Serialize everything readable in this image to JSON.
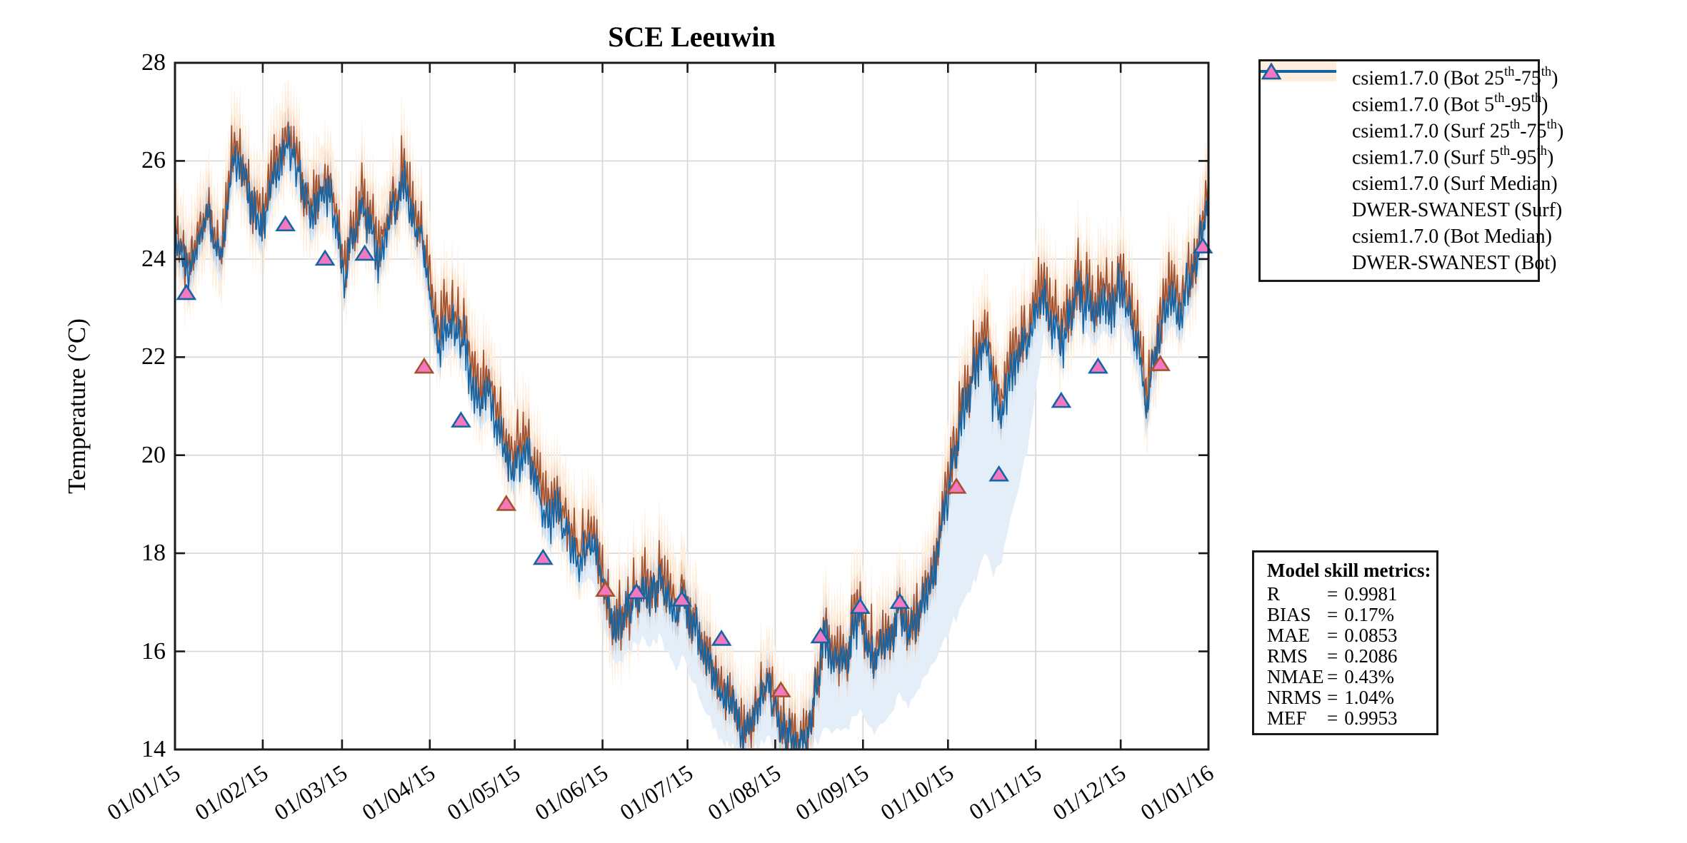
{
  "chart_data": {
    "type": "line",
    "title": "SCE Leeuwin",
    "xlabel": "",
    "ylabel": "Temperature (°C)",
    "ylim": [
      14,
      28
    ],
    "y_ticks": [
      14,
      16,
      18,
      20,
      22,
      24,
      26,
      28
    ],
    "x_tick_labels": [
      "01/01/15",
      "01/02/15",
      "01/03/15",
      "01/04/15",
      "01/05/15",
      "01/06/15",
      "01/07/15",
      "01/08/15",
      "01/09/15",
      "01/10/15",
      "01/11/15",
      "01/12/15",
      "01/01/16"
    ],
    "x_tick_days": [
      0,
      31,
      59,
      90,
      120,
      151,
      181,
      212,
      243,
      273,
      304,
      334,
      365
    ],
    "total_days": 365,
    "grid": true,
    "legend_position": "outside-right",
    "series_control_points": {
      "days": [
        0,
        3,
        5,
        8,
        11,
        13,
        16,
        19,
        21,
        24,
        27,
        30,
        33,
        36,
        39,
        42,
        45,
        48,
        51,
        54,
        57,
        60,
        63,
        66,
        69,
        72,
        75,
        78,
        81,
        84,
        87,
        90,
        93,
        96,
        99,
        102,
        105,
        108,
        111,
        114,
        117,
        120,
        123,
        126,
        129,
        132,
        135,
        138,
        141,
        144,
        147,
        150,
        153,
        156,
        159,
        162,
        165,
        168,
        171,
        174,
        177,
        180,
        183,
        186,
        189,
        192,
        195,
        198,
        201,
        204,
        207,
        210,
        212,
        215,
        218,
        221,
        224,
        227,
        229,
        232,
        235,
        238,
        241,
        244,
        247,
        250,
        253,
        256,
        259,
        262,
        265,
        268,
        271,
        274,
        277,
        280,
        283,
        286,
        289,
        292,
        295,
        298,
        301,
        304,
        307,
        310,
        313,
        316,
        319,
        322,
        325,
        328,
        331,
        334,
        337,
        340,
        343,
        346,
        349,
        352,
        355,
        358,
        361,
        363,
        365
      ],
      "bot_median": [
        24.6,
        24.0,
        23.4,
        24.4,
        25.1,
        24.5,
        24.0,
        25.2,
        26.2,
        25.6,
        25.0,
        24.6,
        25.2,
        25.8,
        26.3,
        26.0,
        25.4,
        24.8,
        25.2,
        25.5,
        24.6,
        23.7,
        24.5,
        25.3,
        24.6,
        24.0,
        24.6,
        25.2,
        25.5,
        25.0,
        24.3,
        23.2,
        22.2,
        22.5,
        22.7,
        22.1,
        21.5,
        21.0,
        21.2,
        20.7,
        20.2,
        19.8,
        20.1,
        19.8,
        19.2,
        18.5,
        18.8,
        18.4,
        18.0,
        17.8,
        18.2,
        17.7,
        17.0,
        16.4,
        16.7,
        17.0,
        17.3,
        17.1,
        17.4,
        17.1,
        16.8,
        17.1,
        16.7,
        16.2,
        15.7,
        15.4,
        15.0,
        14.7,
        14.35,
        14.6,
        15.0,
        15.2,
        14.9,
        14.4,
        14.15,
        14.1,
        14.35,
        15.5,
        16.3,
        15.9,
        15.6,
        16.1,
        16.8,
        16.3,
        15.7,
        16.0,
        16.4,
        16.8,
        16.4,
        16.7,
        17.1,
        17.6,
        18.5,
        19.6,
        20.4,
        21.0,
        21.9,
        22.5,
        21.3,
        20.9,
        21.5,
        21.9,
        22.3,
        22.9,
        23.3,
        22.7,
        22.4,
        22.9,
        23.3,
        23.0,
        22.8,
        23.2,
        23.0,
        23.2,
        22.8,
        22.2,
        21.0,
        22.0,
        22.8,
        23.3,
        23.0,
        23.5,
        24.0,
        24.6,
        25.0
      ],
      "surf_median": [
        24.75,
        24.15,
        23.55,
        24.55,
        25.25,
        24.65,
        24.15,
        25.35,
        26.35,
        25.75,
        25.15,
        24.75,
        25.35,
        25.95,
        26.45,
        26.15,
        25.55,
        24.95,
        25.35,
        25.65,
        24.75,
        23.9,
        24.7,
        25.5,
        24.8,
        24.2,
        24.8,
        25.4,
        25.7,
        25.2,
        24.5,
        23.5,
        22.5,
        22.8,
        23.0,
        22.4,
        21.8,
        21.3,
        21.5,
        21.0,
        20.5,
        20.1,
        20.4,
        20.1,
        19.5,
        18.8,
        19.1,
        18.7,
        18.3,
        18.1,
        18.5,
        17.8,
        17.1,
        16.5,
        16.8,
        17.1,
        17.4,
        17.2,
        17.5,
        17.2,
        16.9,
        17.2,
        16.8,
        16.3,
        15.8,
        15.5,
        15.1,
        14.8,
        14.45,
        14.7,
        15.1,
        15.3,
        15.0,
        14.5,
        14.25,
        14.2,
        14.45,
        15.6,
        16.4,
        16.0,
        15.7,
        16.2,
        16.95,
        16.45,
        15.85,
        16.15,
        16.55,
        16.95,
        16.55,
        16.85,
        17.25,
        17.75,
        18.75,
        19.85,
        20.65,
        21.25,
        22.15,
        22.75,
        21.55,
        21.15,
        21.75,
        22.15,
        22.55,
        23.15,
        23.55,
        22.95,
        22.65,
        23.15,
        23.55,
        23.25,
        23.05,
        23.45,
        23.25,
        23.45,
        23.05,
        22.45,
        21.25,
        22.25,
        23.05,
        23.55,
        23.25,
        23.75,
        24.25,
        24.85,
        25.25
      ],
      "bot_p5": [
        24.1,
        23.5,
        22.9,
        23.9,
        24.6,
        24.0,
        23.5,
        24.7,
        25.7,
        25.1,
        24.5,
        24.1,
        24.7,
        25.3,
        25.8,
        25.5,
        24.9,
        24.3,
        24.7,
        25.0,
        24.1,
        23.2,
        24.0,
        24.8,
        24.1,
        23.5,
        24.1,
        24.7,
        25.0,
        24.5,
        23.8,
        22.7,
        21.7,
        22.0,
        22.2,
        21.6,
        21.0,
        20.5,
        20.7,
        20.2,
        19.7,
        19.3,
        19.6,
        19.3,
        18.7,
        18.0,
        18.3,
        17.9,
        17.5,
        17.3,
        17.5,
        16.9,
        16.2,
        15.7,
        15.9,
        16.1,
        16.3,
        16.1,
        16.3,
        16.0,
        15.7,
        15.9,
        15.4,
        15.0,
        14.6,
        14.3,
        14.1,
        14.0,
        14.0,
        14.0,
        14.1,
        14.2,
        14.0,
        14.0,
        14.0,
        14.0,
        14.0,
        14.2,
        14.4,
        14.4,
        14.3,
        14.5,
        14.8,
        14.6,
        14.3,
        14.5,
        14.8,
        15.1,
        14.9,
        15.2,
        15.5,
        15.8,
        16.1,
        16.5,
        16.8,
        17.1,
        17.5,
        18.1,
        17.6,
        17.9,
        18.6,
        19.3,
        20.1,
        21.3,
        22.5,
        22.1,
        21.8,
        22.3,
        22.7,
        22.4,
        22.2,
        22.6,
        22.4,
        22.6,
        22.2,
        21.6,
        20.4,
        21.4,
        22.2,
        22.7,
        22.4,
        22.9,
        23.4,
        24.0,
        24.4
      ]
    },
    "band_offsets": {
      "bot_25_75": 0.28,
      "bot_p95_above": 0.55,
      "surf_25_75": 0.33,
      "surf_5_95": 0.9
    },
    "noise_amplitude_profile": {
      "days": [
        0,
        30,
        60,
        90,
        120,
        150,
        170,
        200,
        230,
        260,
        285,
        300,
        330,
        365
      ],
      "amp": [
        0.5,
        0.55,
        0.55,
        0.6,
        0.6,
        0.55,
        0.6,
        0.5,
        0.6,
        0.55,
        0.65,
        0.6,
        0.6,
        0.55
      ]
    },
    "observations": {
      "surf": [
        {
          "day": 88,
          "t": 21.8
        },
        {
          "day": 117,
          "t": 19.0
        },
        {
          "day": 152,
          "t": 17.25
        },
        {
          "day": 214,
          "t": 15.2
        },
        {
          "day": 276,
          "t": 19.35
        },
        {
          "day": 348,
          "t": 21.85
        }
      ],
      "bot": [
        {
          "day": 4,
          "t": 23.3
        },
        {
          "day": 39,
          "t": 24.7
        },
        {
          "day": 53,
          "t": 24.0
        },
        {
          "day": 67,
          "t": 24.1
        },
        {
          "day": 101,
          "t": 20.7
        },
        {
          "day": 130,
          "t": 17.9
        },
        {
          "day": 163,
          "t": 17.2
        },
        {
          "day": 179,
          "t": 17.05
        },
        {
          "day": 193,
          "t": 16.25
        },
        {
          "day": 228,
          "t": 16.3
        },
        {
          "day": 242,
          "t": 16.9
        },
        {
          "day": 256,
          "t": 17.0
        },
        {
          "day": 291,
          "t": 19.6
        },
        {
          "day": 313,
          "t": 21.1
        },
        {
          "day": 326,
          "t": 21.8
        },
        {
          "day": 363,
          "t": 24.25
        }
      ]
    }
  },
  "legend": {
    "entries": [
      {
        "id": "bot-25-75",
        "type": "patch",
        "color": "#b9d4ea",
        "label": [
          {
            "t": "csiem1.7.0 (Bot 25"
          },
          {
            "sup": "th"
          },
          {
            "t": "-75"
          },
          {
            "sup": "th"
          },
          {
            "t": ")"
          }
        ]
      },
      {
        "id": "bot-5-95",
        "type": "patch",
        "color": "#e4eef8",
        "label": [
          {
            "t": "csiem1.7.0 (Bot 5"
          },
          {
            "sup": "th"
          },
          {
            "t": "-95"
          },
          {
            "sup": "th"
          },
          {
            "t": ")"
          }
        ]
      },
      {
        "id": "surf-25-75",
        "type": "patch",
        "color": "#f6c6a8",
        "label": [
          {
            "t": "csiem1.7.0 (Surf 25"
          },
          {
            "sup": "th"
          },
          {
            "t": "-75"
          },
          {
            "sup": "th"
          },
          {
            "t": ")"
          }
        ]
      },
      {
        "id": "surf-5-95",
        "type": "patch",
        "color": "#fdeedd",
        "label": [
          {
            "t": "csiem1.7.0 (Surf 5"
          },
          {
            "sup": "th"
          },
          {
            "t": "-95"
          },
          {
            "sup": "th"
          },
          {
            "t": ")"
          }
        ]
      },
      {
        "id": "surf-median",
        "type": "line",
        "color": "#a5522d",
        "label": [
          {
            "t": "csiem1.7.0 (Surf Median)"
          }
        ]
      },
      {
        "id": "dwer-swanest-surf",
        "type": "marker",
        "edge": "#a5522d",
        "fill": "#f478c0",
        "label": [
          {
            "t": "DWER-SWANEST (Surf)"
          }
        ]
      },
      {
        "id": "bot-median",
        "type": "line",
        "color": "#1565a5",
        "label": [
          {
            "t": "csiem1.7.0 (Bot Median)"
          }
        ]
      },
      {
        "id": "dwer-swanest-bot",
        "type": "marker",
        "edge": "#1565a5",
        "fill": "#f478c0",
        "label": [
          {
            "t": "DWER-SWANEST (Bot)"
          }
        ]
      }
    ]
  },
  "metrics": {
    "title": "Model skill metrics:",
    "separator": "=",
    "rows": [
      {
        "label": "R",
        "value": "0.9981"
      },
      {
        "label": "BIAS",
        "value": "0.17%"
      },
      {
        "label": "MAE",
        "value": "0.0853"
      },
      {
        "label": "RMS",
        "value": "0.2086"
      },
      {
        "label": "NMAE",
        "value": "0.43%"
      },
      {
        "label": "NRMS",
        "value": "1.04%"
      },
      {
        "label": "MEF",
        "value": "0.9953"
      }
    ]
  },
  "colors": {
    "surf_median": "#a5522d",
    "bot_median": "#1565a5",
    "surf_iqr": "#f6c6a8",
    "surf_595": "#fdeedd",
    "bot_iqr": "#b9d4ea",
    "bot_595": "#e4eef8",
    "marker_fill": "#f478c0",
    "axis": "#1a1a1a",
    "grid": "#d6d6d6",
    "text": "#000000"
  }
}
